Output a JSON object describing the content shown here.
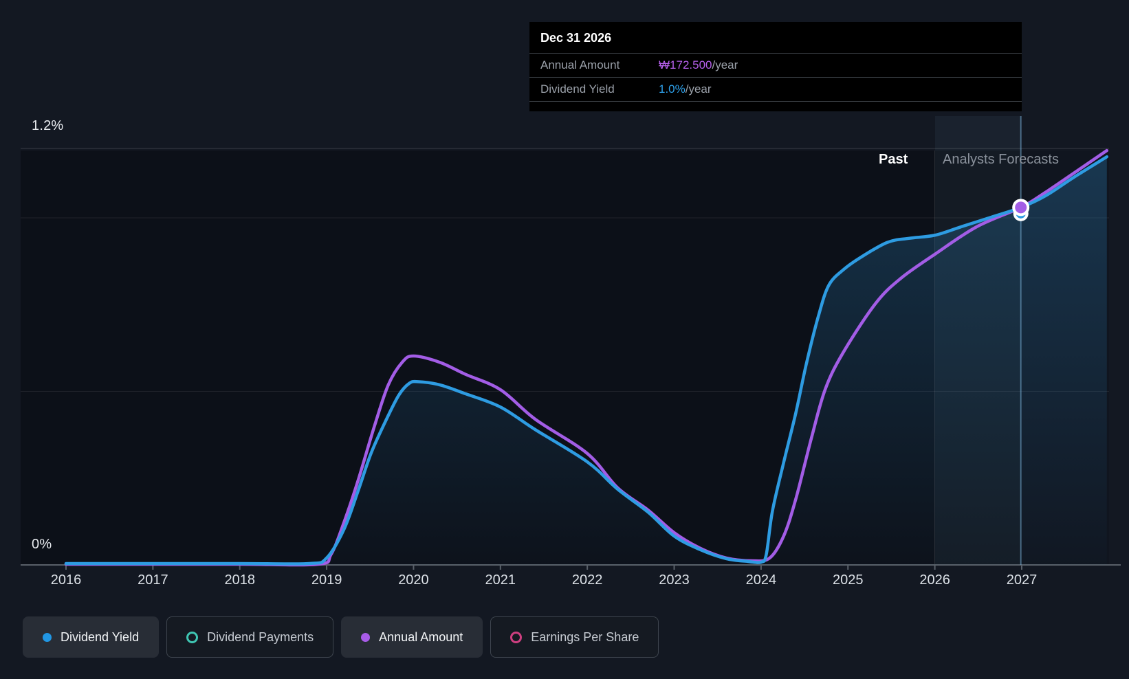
{
  "page_bg": "#131822",
  "tooltip": {
    "title": "Dec 31 2026",
    "rows": [
      {
        "label": "Annual Amount",
        "value": "₩172.500",
        "suffix": "/year",
        "value_color": "#b45fe9"
      },
      {
        "label": "Dividend Yield",
        "value": "1.0%",
        "suffix": "/year",
        "value_color": "#2d9fe8"
      }
    ]
  },
  "chart_data": {
    "type": "line",
    "title": "Dividend history and forecast chart",
    "past_label": "Past",
    "forecast_label": "Analysts Forecasts",
    "forecast_start_year": 2026,
    "x_axis": {
      "ticks": [
        "2016",
        "2017",
        "2018",
        "2019",
        "2020",
        "2021",
        "2022",
        "2023",
        "2024",
        "2025",
        "2026",
        "2027"
      ],
      "range": [
        2015.48,
        2027.98
      ]
    },
    "y_axis": {
      "top_label": "1.2%",
      "bottom_label": "0%",
      "unit": "%",
      "gridlines_pct": [
        1.2,
        1.0,
        0.5
      ],
      "range": [
        0,
        1.45
      ]
    },
    "marker": {
      "date": "Dec 31 2026",
      "year": 2026.99,
      "value_pct": 1.03,
      "annual_amount": "₩172.500/year",
      "dividend_yield": "1.0%/year"
    },
    "anchor_line_year": 2026.99,
    "series": [
      {
        "name": "Annual Amount",
        "color": "#a35de6",
        "points": [
          [
            2016,
            0.002
          ],
          [
            2017,
            0.002
          ],
          [
            2018,
            0.002
          ],
          [
            2018.9,
            0.002
          ],
          [
            2019.05,
            0.03
          ],
          [
            2019.2,
            0.123
          ],
          [
            2019.36,
            0.242
          ],
          [
            2019.55,
            0.4
          ],
          [
            2019.71,
            0.519
          ],
          [
            2019.87,
            0.584
          ],
          [
            2020.0,
            0.602
          ],
          [
            2020.3,
            0.584
          ],
          [
            2020.6,
            0.549
          ],
          [
            2021.0,
            0.505
          ],
          [
            2021.4,
            0.42
          ],
          [
            2022.0,
            0.321
          ],
          [
            2022.35,
            0.222
          ],
          [
            2022.7,
            0.158
          ],
          [
            2023.0,
            0.093
          ],
          [
            2023.3,
            0.048
          ],
          [
            2023.6,
            0.02
          ],
          [
            2023.9,
            0.012
          ],
          [
            2024.1,
            0.02
          ],
          [
            2024.26,
            0.083
          ],
          [
            2024.4,
            0.19
          ],
          [
            2024.58,
            0.366
          ],
          [
            2024.74,
            0.507
          ],
          [
            2024.95,
            0.614
          ],
          [
            2025.32,
            0.754
          ],
          [
            2025.61,
            0.826
          ],
          [
            2026.0,
            0.895
          ],
          [
            2026.48,
            0.974
          ],
          [
            2026.99,
            1.03
          ],
          [
            2027.27,
            1.073
          ],
          [
            2027.6,
            1.129
          ],
          [
            2027.98,
            1.194
          ]
        ]
      },
      {
        "name": "Dividend Yield",
        "color": "#2e9ce2",
        "fill_top": "rgba(45,135,195,0.30)",
        "fill_bottom": "rgba(45,135,195,0.02)",
        "points": [
          [
            2016,
            0.004
          ],
          [
            2017,
            0.004
          ],
          [
            2018,
            0.004
          ],
          [
            2018.8,
            0.004
          ],
          [
            2019.0,
            0.02
          ],
          [
            2019.2,
            0.103
          ],
          [
            2019.36,
            0.212
          ],
          [
            2019.51,
            0.321
          ],
          [
            2019.67,
            0.41
          ],
          [
            2019.83,
            0.489
          ],
          [
            2019.95,
            0.523
          ],
          [
            2020.05,
            0.528
          ],
          [
            2020.3,
            0.519
          ],
          [
            2020.6,
            0.493
          ],
          [
            2021.0,
            0.455
          ],
          [
            2021.4,
            0.39
          ],
          [
            2022.0,
            0.297
          ],
          [
            2022.35,
            0.218
          ],
          [
            2022.7,
            0.152
          ],
          [
            2023.0,
            0.083
          ],
          [
            2023.3,
            0.044
          ],
          [
            2023.6,
            0.018
          ],
          [
            2023.85,
            0.01
          ],
          [
            2024.0,
            0.008
          ],
          [
            2024.06,
            0.03
          ],
          [
            2024.13,
            0.154
          ],
          [
            2024.26,
            0.295
          ],
          [
            2024.4,
            0.438
          ],
          [
            2024.52,
            0.578
          ],
          [
            2024.66,
            0.717
          ],
          [
            2024.78,
            0.806
          ],
          [
            2024.95,
            0.851
          ],
          [
            2025.14,
            0.885
          ],
          [
            2025.45,
            0.929
          ],
          [
            2025.7,
            0.941
          ],
          [
            2026.0,
            0.95
          ],
          [
            2026.3,
            0.974
          ],
          [
            2026.65,
            1.002
          ],
          [
            2026.99,
            1.03
          ],
          [
            2027.27,
            1.063
          ],
          [
            2027.6,
            1.117
          ],
          [
            2027.98,
            1.176
          ]
        ]
      }
    ]
  },
  "legend": [
    {
      "label": "Dividend Yield",
      "color": "#2196e3",
      "style": "filled",
      "active": true
    },
    {
      "label": "Dividend Payments",
      "color": "#3fc6b3",
      "style": "ring",
      "active": false
    },
    {
      "label": "Annual Amount",
      "color": "#a85ce8",
      "style": "filled",
      "active": true
    },
    {
      "label": "Earnings Per Share",
      "color": "#ce3f80",
      "style": "ring",
      "active": false
    }
  ]
}
